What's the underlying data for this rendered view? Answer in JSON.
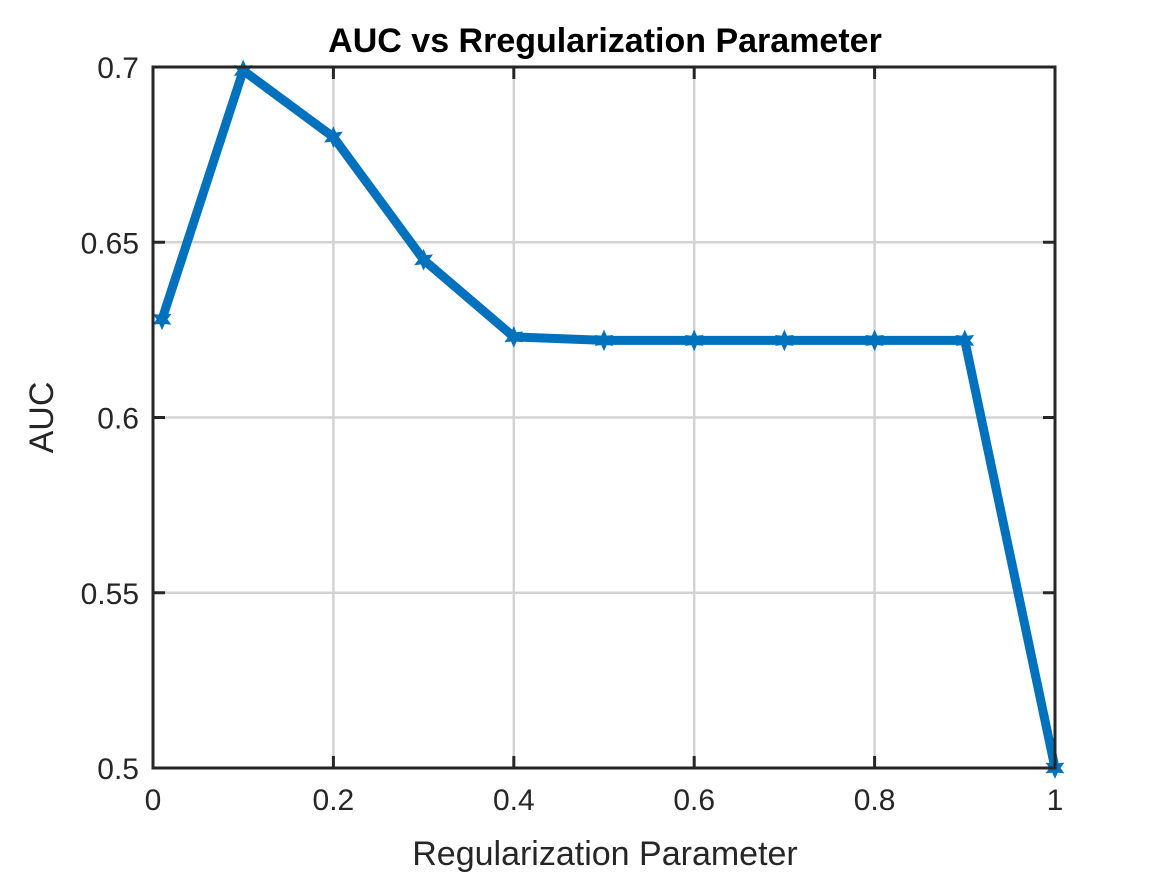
{
  "chart_data": {
    "type": "line",
    "title": "AUC vs Rregularization Parameter",
    "xlabel": "Regularization Parameter",
    "ylabel": "AUC",
    "xlim": [
      0,
      1
    ],
    "ylim": [
      0.5,
      0.7
    ],
    "xticks": [
      0,
      0.2,
      0.4,
      0.6,
      0.8,
      1
    ],
    "xtick_labels": [
      "0",
      "0.2",
      "0.4",
      "0.6",
      "0.8",
      "1"
    ],
    "yticks": [
      0.5,
      0.55,
      0.6,
      0.65,
      0.7
    ],
    "ytick_labels": [
      "0.5",
      "0.55",
      "0.6",
      "0.65",
      "0.7"
    ],
    "grid": true,
    "series": [
      {
        "color": "#0072BD",
        "marker": "hexagram",
        "x": [
          0.01,
          0.1,
          0.2,
          0.3,
          0.4,
          0.5,
          0.6,
          0.7,
          0.8,
          0.9,
          1.0
        ],
        "y": [
          0.628,
          0.699,
          0.68,
          0.645,
          0.623,
          0.622,
          0.622,
          0.622,
          0.622,
          0.622,
          0.5
        ]
      }
    ]
  }
}
